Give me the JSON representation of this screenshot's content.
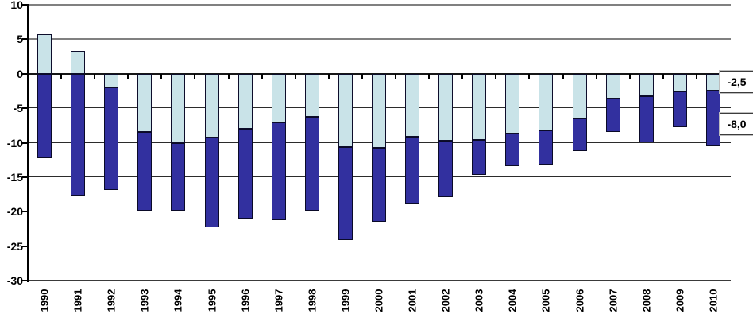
{
  "chart_data": {
    "type": "bar",
    "stacked": true,
    "title": "",
    "xlabel": "",
    "ylabel": "",
    "legend": "none",
    "grid": true,
    "ylim": [
      -30,
      10
    ],
    "yticks": [
      10,
      5,
      0,
      -5,
      -10,
      -15,
      -20,
      -25,
      -30
    ],
    "categories": [
      "1990",
      "1991",
      "1992",
      "1993",
      "1994",
      "1995",
      "1996",
      "1997",
      "1998",
      "1999",
      "2000",
      "2001",
      "2002",
      "2003",
      "2004",
      "2005",
      "2006",
      "2007",
      "2008",
      "2009",
      "2010"
    ],
    "series": [
      {
        "name": "light_blue_segment",
        "color": "#c9e3e8",
        "values": [
          5.7,
          3.3,
          -2.0,
          -8.4,
          -10.0,
          -9.2,
          -8.0,
          -7.1,
          -6.2,
          -10.6,
          -10.7,
          -9.1,
          -9.7,
          -9.6,
          -8.7,
          -8.2,
          -6.5,
          -3.6,
          -3.2,
          -2.6,
          -2.5
        ]
      },
      {
        "name": "dark_blue_segment",
        "color": "#32309f",
        "values": [
          -12.3,
          -17.7,
          -14.9,
          -11.5,
          -9.9,
          -13.1,
          -13.0,
          -14.1,
          -13.7,
          -13.5,
          -10.8,
          -9.7,
          -8.2,
          -5.1,
          -4.7,
          -5.0,
          -4.7,
          -4.8,
          -6.7,
          -5.1,
          -8.0
        ]
      }
    ],
    "stack_totals": [
      -12.3,
      -17.7,
      -16.9,
      -19.9,
      -19.9,
      -22.3,
      -21.0,
      -21.2,
      -19.9,
      -24.1,
      -21.5,
      -18.8,
      -17.9,
      -14.7,
      -13.4,
      -13.2,
      -11.2,
      -8.4,
      -9.9,
      -7.7,
      -10.5
    ],
    "annotations": [
      {
        "text": "-2,5",
        "refers_to": "2010 light_blue_segment"
      },
      {
        "text": "-8,0",
        "refers_to": "2010 dark_blue_segment"
      }
    ],
    "colors": {
      "background": "#ffffff",
      "grid_positive": "#808080",
      "grid_negative": "#2b2b2b",
      "axis": "#000000",
      "text": "#000000"
    }
  }
}
